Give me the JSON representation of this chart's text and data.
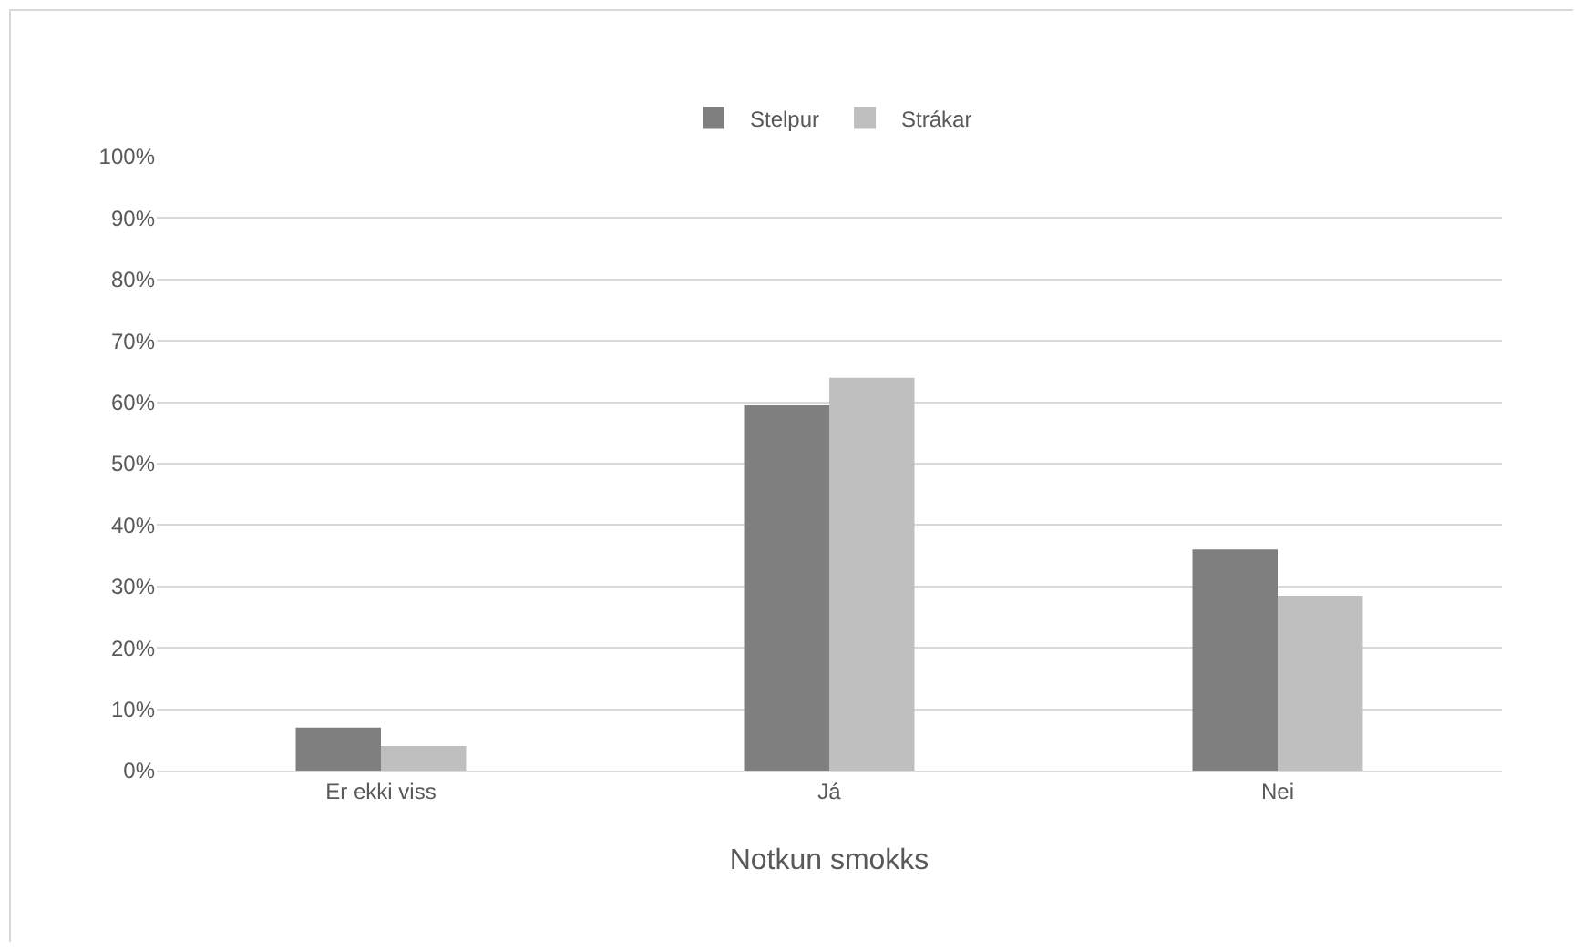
{
  "chart_data": {
    "type": "bar",
    "xlabel": "Notkun smokks",
    "categories": [
      "Er ekki viss",
      "Já",
      "Nei"
    ],
    "series": [
      {
        "name": "Stelpur",
        "color": "#7f7f7f",
        "values": [
          7,
          59.5,
          36
        ]
      },
      {
        "name": "Strákar",
        "color": "#bfbfbf",
        "values": [
          4,
          64,
          28.5
        ]
      }
    ],
    "ylim": [
      0,
      100
    ],
    "yticks": [
      {
        "value": 0,
        "label": "0%"
      },
      {
        "value": 10,
        "label": "10%"
      },
      {
        "value": 20,
        "label": "20%"
      },
      {
        "value": 30,
        "label": "30%"
      },
      {
        "value": 40,
        "label": "40%"
      },
      {
        "value": 50,
        "label": "50%"
      },
      {
        "value": 60,
        "label": "60%"
      },
      {
        "value": 70,
        "label": "70%"
      },
      {
        "value": 80,
        "label": "80%"
      },
      {
        "value": 90,
        "label": "90%"
      },
      {
        "value": 100,
        "label": "100%"
      }
    ],
    "grid": "y",
    "legend": "top"
  }
}
